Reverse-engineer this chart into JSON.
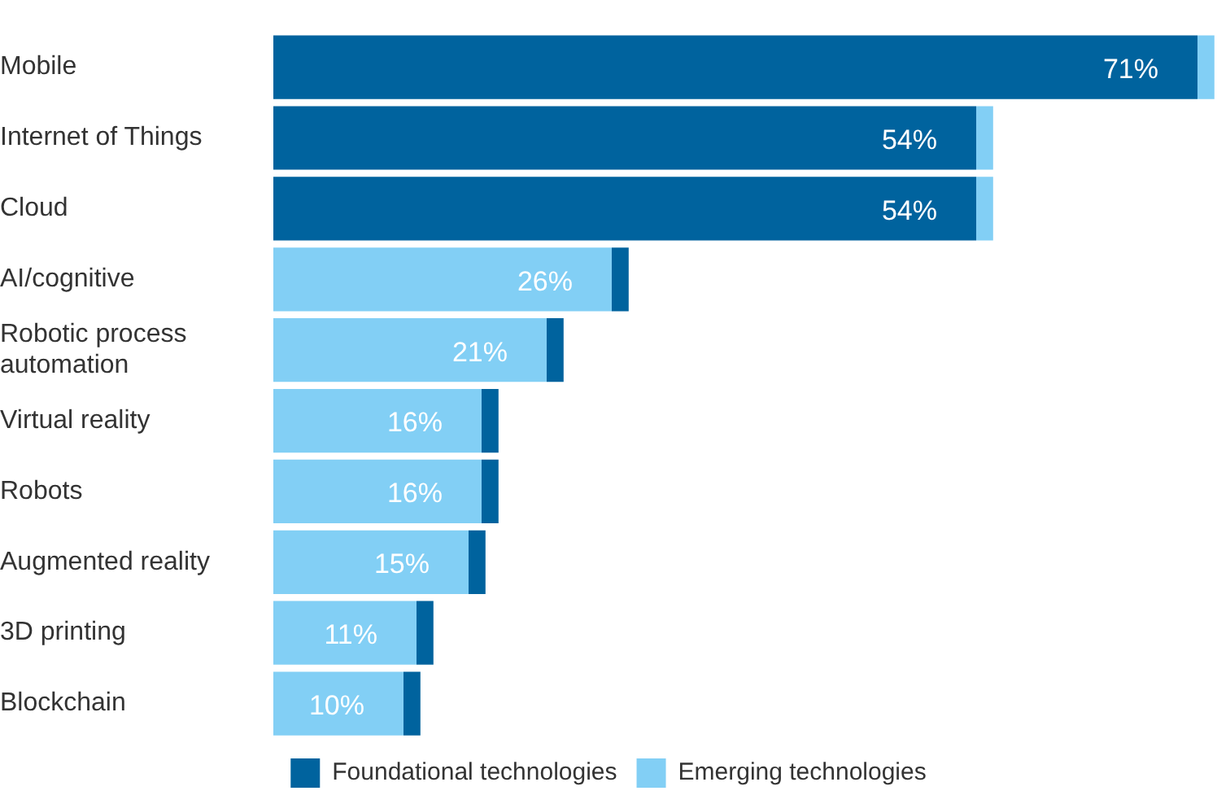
{
  "chart_data": {
    "type": "bar",
    "orientation": "horizontal",
    "stacked": true,
    "categories": [
      "Mobile",
      "Internet of Things",
      "Cloud",
      "AI/cognitive",
      "Robotic process automation",
      "Virtual reality",
      "Robots",
      "Augmented reality",
      "3D printing",
      "Blockchain"
    ],
    "series": [
      {
        "name": "Foundational technologies",
        "color": "#00639e",
        "values": [
          71,
          54,
          54,
          null,
          null,
          null,
          null,
          null,
          null,
          null
        ],
        "value_labels": [
          "71%",
          "54%",
          "54%",
          null,
          null,
          null,
          null,
          null,
          null,
          null
        ]
      },
      {
        "name": "Emerging technologies",
        "color": "#82cff5",
        "values": [
          1.3,
          1.3,
          1.3,
          26,
          21,
          16,
          16,
          15,
          11,
          10
        ],
        "value_labels": [
          null,
          null,
          null,
          "26%",
          "21%",
          "16%",
          "16%",
          "15%",
          "11%",
          "10%"
        ]
      },
      {
        "color": "#00639e",
        "values": [
          null,
          null,
          null,
          1.3,
          1.3,
          1.3,
          1.3,
          1.3,
          1.3,
          1.3
        ]
      }
    ],
    "xlim": [
      0,
      72.5
    ],
    "grid": false,
    "legend": "bottom",
    "tick_labels": "y"
  }
}
